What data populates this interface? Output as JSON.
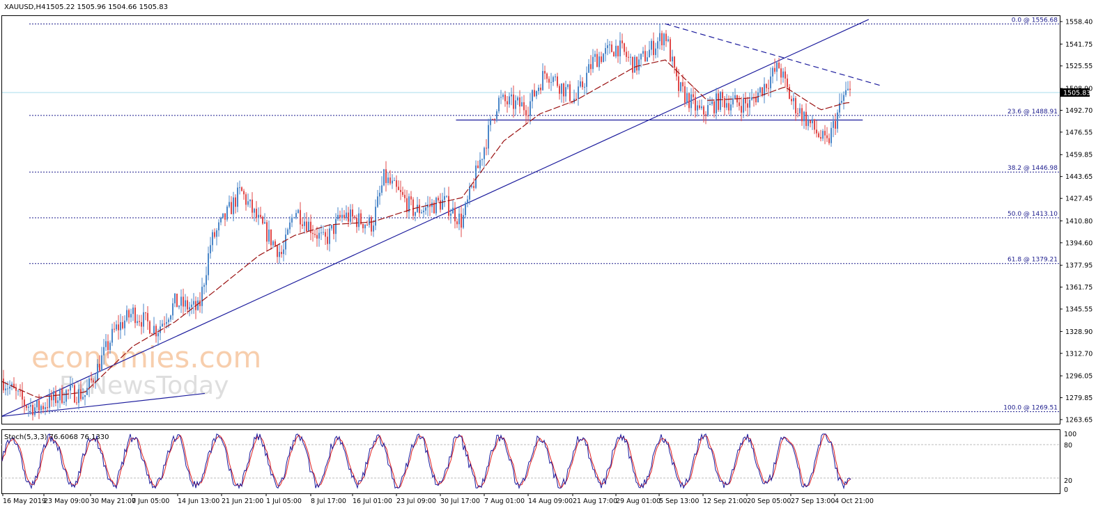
{
  "header": {
    "symbol_label": "XAUUSD,H4",
    "ohlc_text": "1505.22 1505.96 1504.66 1505.83"
  },
  "watermark": {
    "line1": "economies.com",
    "line2": "FxNewsToday"
  },
  "price_axis": {
    "ticks": [
      "1558.40",
      "1541.75",
      "1525.55",
      "1508.90",
      "1492.70",
      "1476.55",
      "1459.85",
      "1443.65",
      "1427.45",
      "1410.80",
      "1394.60",
      "1377.95",
      "1361.75",
      "1345.55",
      "1328.90",
      "1312.70",
      "1296.05",
      "1279.85",
      "1263.65"
    ],
    "current_price_label": "1505.83",
    "current_price": 1505.83
  },
  "fib_levels": [
    {
      "label": "0.0 @ 1556.68",
      "price": 1556.68
    },
    {
      "label": "23.6 @ 1488.91",
      "price": 1488.91
    },
    {
      "label": "38.2 @ 1446.98",
      "price": 1446.98
    },
    {
      "label": "50.0 @ 1413.10",
      "price": 1413.1
    },
    {
      "label": "61.8 @ 1379.21",
      "price": 1379.21
    },
    {
      "label": "100.0 @ 1269.51",
      "price": 1269.51
    }
  ],
  "time_axis": {
    "labels": [
      "16 May 2019",
      "23 May 09:00",
      "30 May 21:00",
      "7 Jun 05:00",
      "14 Jun 13:00",
      "21 Jun 21:00",
      "1 Jul 05:00",
      "8 Jul 17:00",
      "16 Jul 01:00",
      "23 Jul 09:00",
      "30 Jul 17:00",
      "7 Aug 01:00",
      "14 Aug 09:00",
      "21 Aug 17:00",
      "29 Aug 01:00",
      "5 Sep 13:00",
      "12 Sep 21:00",
      "20 Sep 05:00",
      "27 Sep 13:00",
      "4 Oct 21:00"
    ]
  },
  "indicator": {
    "title": "Stoch(5,3,3) 76.6068 76.1330",
    "axis_labels": [
      "100",
      "80",
      "20",
      "0"
    ],
    "levels": [
      80,
      20
    ]
  },
  "colors": {
    "bull": "#4a86c8",
    "bear": "#e04848",
    "ma": "#9a1010",
    "trendline": "#1a1a9c",
    "fib": "#1a1a8c",
    "current": "#a8dcee",
    "stoch_main": "#1a1a9c",
    "stoch_signal": "#e02020",
    "watermark": "#f7c9a5"
  },
  "chart_data": {
    "type": "candlestick",
    "title": "XAUUSD,H4",
    "ylim": [
      1263.65,
      1558.4
    ],
    "waypoints": [
      [
        "16 May 2019",
        1294
      ],
      [
        "20 May 2019",
        1275
      ],
      [
        "22 May 2019",
        1272
      ],
      [
        "27 May 2019",
        1284
      ],
      [
        "30 May 2019",
        1282
      ],
      [
        "4 Jun 2019",
        1330
      ],
      [
        "7 Jun 2019",
        1343
      ],
      [
        "11 Jun 2019",
        1330
      ],
      [
        "14 Jun 2019",
        1350
      ],
      [
        "18 Jun 2019",
        1345
      ],
      [
        "20 Jun 2019",
        1395
      ],
      [
        "25 Jun 2019",
        1433
      ],
      [
        "28 Jun 2019",
        1410
      ],
      [
        "2 Jul 2019",
        1385
      ],
      [
        "4 Jul 2019",
        1420
      ],
      [
        "9 Jul 2019",
        1395
      ],
      [
        "12 Jul 2019",
        1415
      ],
      [
        "17 Jul 2019",
        1408
      ],
      [
        "19 Jul 2019",
        1443
      ],
      [
        "24 Jul 2019",
        1418
      ],
      [
        "29 Jul 2019",
        1425
      ],
      [
        "1 Aug 2019",
        1410
      ],
      [
        "7 Aug 2019",
        1500
      ],
      [
        "12 Aug 2019",
        1495
      ],
      [
        "15 Aug 2019",
        1522
      ],
      [
        "20 Aug 2019",
        1500
      ],
      [
        "23 Aug 2019",
        1530
      ],
      [
        "27 Aug 2019",
        1540
      ],
      [
        "30 Aug 2019",
        1525
      ],
      [
        "4 Sep 2019",
        1550
      ],
      [
        "6 Sep 2019",
        1510
      ],
      [
        "10 Sep 2019",
        1490
      ],
      [
        "13 Sep 2019",
        1500
      ],
      [
        "18 Sep 2019",
        1497
      ],
      [
        "23 Sep 2019",
        1525
      ],
      [
        "25 Sep 2019",
        1500
      ],
      [
        "1 Oct 2019",
        1467
      ],
      [
        "4 Oct 2019",
        1505
      ],
      [
        "8 Oct 2019",
        1505
      ]
    ],
    "moving_average": [
      [
        "16 May 2019",
        1292
      ],
      [
        "22 May 2019",
        1280
      ],
      [
        "30 May 2019",
        1284
      ],
      [
        "7 Jun 2019",
        1318
      ],
      [
        "14 Jun 2019",
        1336
      ],
      [
        "21 Jun 2019",
        1360
      ],
      [
        "28 Jun 2019",
        1385
      ],
      [
        "4 Jul 2019",
        1400
      ],
      [
        "10 Jul 2019",
        1408
      ],
      [
        "17 Jul 2019",
        1410
      ],
      [
        "24 Jul 2019",
        1420
      ],
      [
        "1 Aug 2019",
        1428
      ],
      [
        "8 Aug 2019",
        1470
      ],
      [
        "14 Aug 2019",
        1490
      ],
      [
        "20 Aug 2019",
        1500
      ],
      [
        "26 Aug 2019",
        1515
      ],
      [
        "30 Aug 2019",
        1525
      ],
      [
        "4 Sep 2019",
        1530
      ],
      [
        "11 Sep 2019",
        1500
      ],
      [
        "19 Sep 2019",
        1502
      ],
      [
        "24 Sep 2019",
        1510
      ],
      [
        "30 Sep 2019",
        1493
      ],
      [
        "4 Oct 2019",
        1498
      ],
      [
        "8 Oct 2019",
        1500
      ]
    ],
    "trendlines": [
      {
        "style": "solid",
        "from": [
          "16 May 2019",
          1266
        ],
        "to": [
          "8 Oct 2019",
          1560
        ]
      },
      {
        "style": "solid",
        "from": [
          "16 May 2019",
          1266
        ],
        "to": [
          "19 Jun 2019",
          1283
        ]
      },
      {
        "style": "solid",
        "from": [
          "31 Jul 2019",
          1485.5
        ],
        "to": [
          "7 Oct 2019",
          1485.5
        ]
      },
      {
        "style": "dashed",
        "from": [
          "4 Sep 2019",
          1556.68
        ],
        "to": [
          "10 Oct 2019",
          1511
        ]
      }
    ],
    "current_price": 1505.83
  }
}
